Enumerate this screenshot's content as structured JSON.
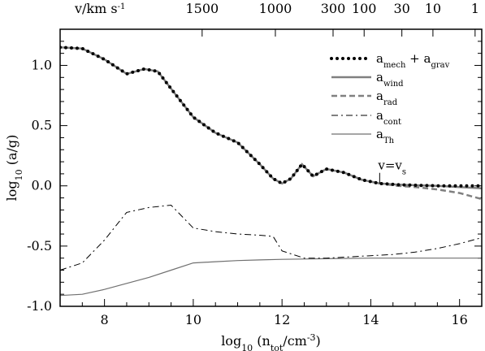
{
  "chart_data": {
    "type": "line",
    "xlim": [
      7,
      16.5
    ],
    "ylim": [
      -1.0,
      1.3
    ],
    "xlabel": {
      "base": "log",
      "sub": "10",
      "rest": " (n",
      "sub2": "tot",
      "rest2": "/cm",
      "sup": "-3",
      "tail": ")"
    },
    "ylabel": {
      "base": "log",
      "sub": "10",
      "rest": " (a/g)"
    },
    "x_ticks": [
      8,
      10,
      12,
      14,
      16
    ],
    "x_tick_labels": [
      "8",
      "10",
      "12",
      "14",
      "16"
    ],
    "y_ticks": [
      -1.0,
      -0.5,
      0.0,
      0.5,
      1.0
    ],
    "y_tick_labels": [
      "-1.0",
      "-0.5",
      "0.0",
      "0.5",
      "1.0"
    ],
    "top_axis": {
      "title": {
        "base": "v/km s",
        "sup": "-1"
      },
      "ticks": [
        {
          "x": 10.2,
          "label": "1500"
        },
        {
          "x": 11.85,
          "label": "1000"
        },
        {
          "x": 13.15,
          "label": "300"
        },
        {
          "x": 13.85,
          "label": "100"
        },
        {
          "x": 14.7,
          "label": "30"
        },
        {
          "x": 15.4,
          "label": "10"
        },
        {
          "x": 16.35,
          "label": "1"
        }
      ]
    },
    "annotation": {
      "base": "v=v",
      "sub": "s",
      "x": 14.2,
      "y": 0.0
    },
    "series": [
      {
        "name": {
          "base": "a",
          "sub": "mech",
          "mid": " + a",
          "sub2": "grav"
        },
        "style": "dotted",
        "color": "#000000",
        "x": [
          7.0,
          7.5,
          8.0,
          8.5,
          8.9,
          9.2,
          9.6,
          10.0,
          10.5,
          11.0,
          11.5,
          11.8,
          12.0,
          12.2,
          12.45,
          12.7,
          13.0,
          13.4,
          13.8,
          14.2,
          14.6,
          15.0,
          15.5,
          16.0,
          16.5
        ],
        "y": [
          1.15,
          1.14,
          1.05,
          0.93,
          0.97,
          0.95,
          0.76,
          0.57,
          0.44,
          0.36,
          0.18,
          0.06,
          0.02,
          0.06,
          0.18,
          0.08,
          0.14,
          0.11,
          0.05,
          0.02,
          0.01,
          0.005,
          0.0,
          0.0,
          0.0
        ]
      },
      {
        "name": {
          "base": "a",
          "sub": "wind"
        },
        "style": "solid-thick",
        "color": "#808080",
        "x": [
          7.0,
          7.5,
          8.0,
          8.5,
          8.9,
          9.2,
          9.6,
          10.0,
          10.5,
          11.0,
          11.5,
          11.8,
          12.0,
          12.2,
          12.45,
          12.7,
          13.0,
          13.4,
          13.8,
          14.2,
          14.6,
          15.0,
          15.5,
          16.0,
          16.5
        ],
        "y": [
          1.15,
          1.14,
          1.05,
          0.93,
          0.97,
          0.95,
          0.76,
          0.57,
          0.44,
          0.36,
          0.18,
          0.06,
          0.02,
          0.06,
          0.18,
          0.08,
          0.14,
          0.11,
          0.05,
          0.02,
          0.01,
          0.005,
          0.0,
          -0.01,
          -0.02
        ]
      },
      {
        "name": {
          "base": "a",
          "sub": "rad"
        },
        "style": "dashed",
        "color": "#808080",
        "x": [
          13.4,
          13.8,
          14.2,
          14.6,
          15.0,
          15.5,
          16.0,
          16.5
        ],
        "y": [
          0.11,
          0.05,
          0.02,
          0.0,
          -0.01,
          -0.03,
          -0.06,
          -0.11
        ]
      },
      {
        "name": {
          "base": "a",
          "sub": "cont"
        },
        "style": "dashdot",
        "color": "#000000",
        "x": [
          7.0,
          7.5,
          8.0,
          8.5,
          9.0,
          9.5,
          10.0,
          10.5,
          11.0,
          11.5,
          11.8,
          12.0,
          12.5,
          13.0,
          13.5,
          14.0,
          14.5,
          15.0,
          15.5,
          16.0,
          16.5
        ],
        "y": [
          -0.7,
          -0.64,
          -0.45,
          -0.22,
          -0.18,
          -0.16,
          -0.35,
          -0.38,
          -0.4,
          -0.41,
          -0.42,
          -0.54,
          -0.6,
          -0.6,
          -0.59,
          -0.58,
          -0.57,
          -0.55,
          -0.52,
          -0.48,
          -0.43
        ]
      },
      {
        "name": {
          "base": "a",
          "sub": "Th"
        },
        "style": "solid-thin",
        "color": "#707070",
        "x": [
          7.0,
          7.5,
          8.0,
          8.5,
          9.0,
          9.5,
          10.0,
          10.5,
          11.0,
          11.5,
          12.0,
          13.0,
          14.0,
          15.0,
          16.0,
          16.5
        ],
        "y": [
          -0.91,
          -0.9,
          -0.86,
          -0.81,
          -0.76,
          -0.7,
          -0.64,
          -0.63,
          -0.62,
          -0.615,
          -0.61,
          -0.605,
          -0.6,
          -0.6,
          -0.6,
          -0.6
        ]
      }
    ]
  }
}
